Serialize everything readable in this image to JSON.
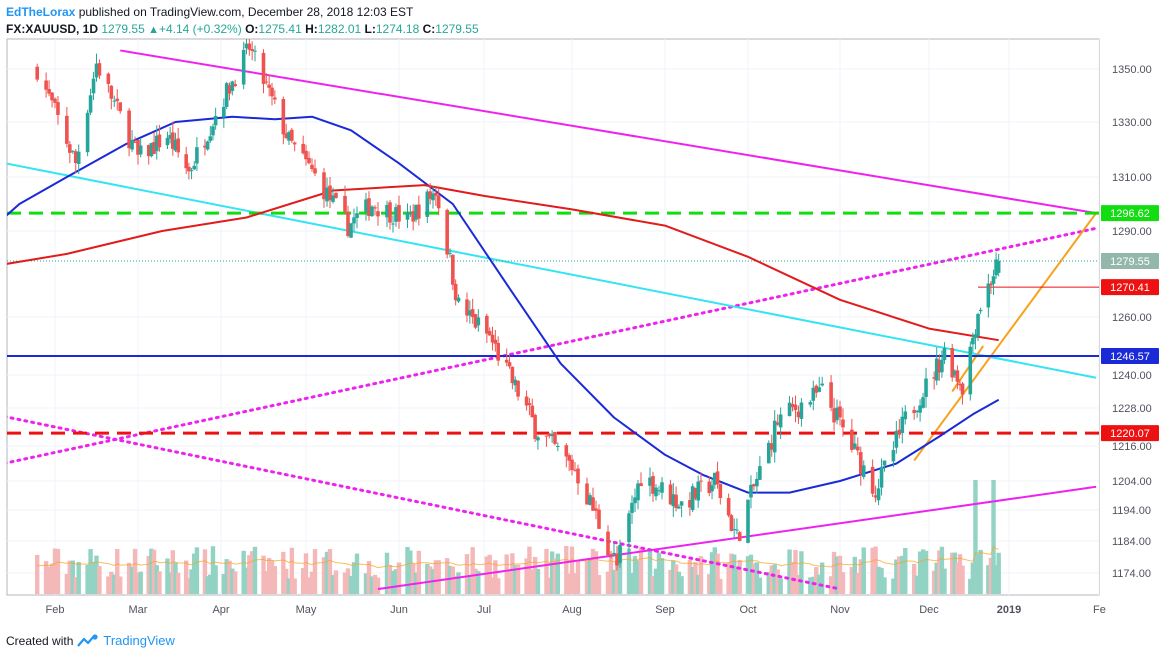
{
  "header": {
    "author": "EdTheLorax",
    "published_text": "published on TradingView.com, December 28, 2018 12:03 EST",
    "symbol": "FX:XAUUSD, 1D",
    "last": "1279.55",
    "change": "+4.14 (+0.32%)",
    "open_label": "O:",
    "open": "1275.41",
    "high_label": "H:",
    "high": "1282.01",
    "low_label": "L:",
    "low": "1274.18",
    "close_label": "C:",
    "close": "1279.55"
  },
  "footer": {
    "created_with": "Created with",
    "brand": "TradingView"
  },
  "colors": {
    "up_candle": "#26a69a",
    "down_candle": "#ef5350",
    "up_volume": "#92d3c4",
    "down_volume": "#f5b8b8",
    "ma_short": "#1a2ad6",
    "ma_long": "#e21b1b",
    "magenta": "#ee22ee",
    "cyan": "#33e4f2",
    "orange": "#f7a21b",
    "green_dash": "#11dd11",
    "red_dash": "#ee1111",
    "blue_line": "#1a2ad6",
    "price_tag": "#93b8ab"
  },
  "chart_data": {
    "type": "candlestick",
    "instrument": "FX:XAUUSD",
    "interval": "1D",
    "x_tick_labels": [
      "Feb",
      "Mar",
      "Apr",
      "May",
      "Jun",
      "Jul",
      "Aug",
      "Sep",
      "Oct",
      "Nov",
      "Dec",
      "2019",
      "Fe"
    ],
    "y_tick_labels": [
      "1350.00",
      "1330.00",
      "1310.00",
      "1290.00",
      "1260.00",
      "1240.00",
      "1228.00",
      "1216.00",
      "1204.00",
      "1194.00",
      "1184.00",
      "1174.00"
    ],
    "y_tick_values": [
      1350,
      1330,
      1310,
      1290,
      1260,
      1240,
      1228,
      1216,
      1204,
      1194,
      1184,
      1174
    ],
    "price_tags": [
      {
        "value": 1296.62,
        "label": "1296.62",
        "color": "#11dd11"
      },
      {
        "value": 1279.55,
        "label": "1279.55",
        "color": "#93b8ab"
      },
      {
        "value": 1270.41,
        "label": "1270.41",
        "color": "#ee1111"
      },
      {
        "value": 1246.57,
        "label": "1246.57",
        "color": "#1a2ad6"
      },
      {
        "value": 1220.07,
        "label": "1220.07",
        "color": "#ee1111"
      }
    ],
    "horizontal_levels": [
      {
        "value": 1296.62,
        "style": "dashed",
        "color": "#11dd11"
      },
      {
        "value": 1246.57,
        "style": "solid",
        "color": "#1a2ad6"
      },
      {
        "value": 1220.07,
        "style": "dashed",
        "color": "#ee1111"
      }
    ],
    "price_path": [
      [
        "2018-01-26",
        1350
      ],
      [
        "2018-02-08",
        1315
      ],
      [
        "2018-02-15",
        1352
      ],
      [
        "2018-03-01",
        1317
      ],
      [
        "2018-03-12",
        1325
      ],
      [
        "2018-03-20",
        1312
      ],
      [
        "2018-04-11",
        1358
      ],
      [
        "2018-04-25",
        1323
      ],
      [
        "2018-05-03",
        1312
      ],
      [
        "2018-05-15",
        1292
      ],
      [
        "2018-05-23",
        1300
      ],
      [
        "2018-06-04",
        1294
      ],
      [
        "2018-06-14",
        1305
      ],
      [
        "2018-06-22",
        1264
      ],
      [
        "2018-07-03",
        1253
      ],
      [
        "2018-07-19",
        1222
      ],
      [
        "2018-08-02",
        1208
      ],
      [
        "2018-08-16",
        1176
      ],
      [
        "2018-08-24",
        1206
      ],
      [
        "2018-09-07",
        1196
      ],
      [
        "2018-09-19",
        1204
      ],
      [
        "2018-09-27",
        1185
      ],
      [
        "2018-10-11",
        1224
      ],
      [
        "2018-10-26",
        1234
      ],
      [
        "2018-11-13",
        1201
      ],
      [
        "2018-11-23",
        1224
      ],
      [
        "2018-12-07",
        1248
      ],
      [
        "2018-12-14",
        1236
      ],
      [
        "2018-12-20",
        1262
      ],
      [
        "2018-12-28",
        1279.55
      ]
    ],
    "indicators": [
      {
        "kind": "moving_average_short",
        "color": "#1a2ad6",
        "points": [
          [
            "2018-01-01",
            1282
          ],
          [
            "2018-01-20",
            1300
          ],
          [
            "2018-02-05",
            1310
          ],
          [
            "2018-02-25",
            1322
          ],
          [
            "2018-03-15",
            1330
          ],
          [
            "2018-04-05",
            1332
          ],
          [
            "2018-04-20",
            1331
          ],
          [
            "2018-05-03",
            1332
          ],
          [
            "2018-05-16",
            1327
          ],
          [
            "2018-06-01",
            1315
          ],
          [
            "2018-06-20",
            1300
          ],
          [
            "2018-07-10",
            1270
          ],
          [
            "2018-07-28",
            1244
          ],
          [
            "2018-08-15",
            1225
          ],
          [
            "2018-09-01",
            1213
          ],
          [
            "2018-09-15",
            1206
          ],
          [
            "2018-10-01",
            1200
          ],
          [
            "2018-10-15",
            1200
          ],
          [
            "2018-11-01",
            1204
          ],
          [
            "2018-11-20",
            1210
          ],
          [
            "2018-12-05",
            1219
          ],
          [
            "2018-12-18",
            1226
          ],
          [
            "2018-12-28",
            1231
          ]
        ]
      },
      {
        "kind": "moving_average_long",
        "color": "#e21b1b",
        "points": [
          [
            "2018-01-01",
            1276
          ],
          [
            "2018-02-05",
            1282
          ],
          [
            "2018-03-10",
            1290
          ],
          [
            "2018-04-10",
            1295
          ],
          [
            "2018-05-10",
            1305
          ],
          [
            "2018-06-10",
            1307
          ],
          [
            "2018-07-01",
            1303
          ],
          [
            "2018-08-01",
            1298
          ],
          [
            "2018-09-01",
            1292
          ],
          [
            "2018-10-01",
            1281
          ],
          [
            "2018-11-01",
            1266
          ],
          [
            "2018-12-01",
            1256
          ],
          [
            "2018-12-28",
            1252
          ]
        ]
      }
    ],
    "trendlines": [
      {
        "color": "#ee22ee",
        "style": "solid",
        "from": [
          "2018-02-23",
          1357
        ],
        "to": [
          "2019-01-31",
          1296.62
        ]
      },
      {
        "color": "#ee22ee",
        "style": "dotted",
        "from": [
          "2018-01-01",
          1207
        ],
        "to": [
          "2019-01-31",
          1291
        ]
      },
      {
        "color": "#33e4f2",
        "style": "solid",
        "from": [
          "2018-01-01",
          1318
        ],
        "to": [
          "2019-01-31",
          1239
        ]
      },
      {
        "color": "#ee22ee",
        "style": "dotted",
        "from": [
          "2018-01-01",
          1228
        ],
        "to": [
          "2018-11-01",
          1169
        ]
      },
      {
        "color": "#ee22ee",
        "style": "solid",
        "from": [
          "2018-05-25",
          1169
        ],
        "to": [
          "2019-01-31",
          1202
        ]
      },
      {
        "color": "#f7a21b",
        "style": "solid",
        "from": [
          "2018-11-26",
          1211
        ],
        "to": [
          "2019-01-31",
          1296.62
        ]
      },
      {
        "color": "#f7a21b",
        "style": "solid",
        "from": [
          "2018-12-10",
          1234
        ],
        "to": [
          "2018-12-22",
          1250
        ]
      }
    ],
    "volume": {
      "up_color": "#92d3c4",
      "down_color": "#f5b8b8",
      "avg_color": "#f7a21b"
    }
  }
}
